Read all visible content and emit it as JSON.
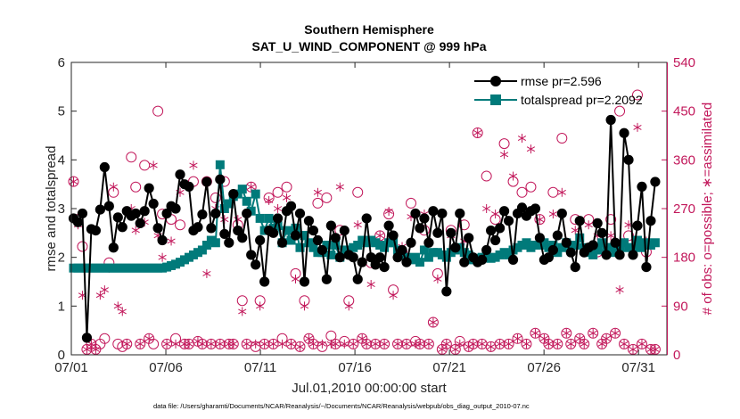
{
  "chart_data": {
    "type": "line",
    "title": "Southern Hemisphere",
    "subtitle": "SAT_U_WIND_COMPONENT @ 999 hPa",
    "xlabel": "Jul.01,2010 00:00:00 start",
    "ylabel_left": "rmse and totalspread",
    "ylabel_right": "# of obs: o=possible; ∗=assimilated",
    "x_ticks": [
      "07/01",
      "07/06",
      "07/11",
      "07/16",
      "07/21",
      "07/26",
      "07/31"
    ],
    "x_tick_days": [
      0,
      5,
      10,
      15,
      20,
      25,
      30
    ],
    "xlim_days": [
      0,
      31.5
    ],
    "ylim_left": [
      0,
      6
    ],
    "yticks_left": [
      "0",
      "1",
      "2",
      "3",
      "4",
      "5",
      "6"
    ],
    "ylim_right": [
      0,
      540
    ],
    "yticks_right": [
      "0",
      "90",
      "180",
      "270",
      "360",
      "450",
      "540"
    ],
    "footnote": "data file: /Users/gharamti/Documents/NCAR/Reanalysis/~/Documents/NCAR/Reanalysis/webpub/obs_diag_output_2010-07.nc",
    "colors": {
      "rmse": "#000000",
      "spread": "#007a7a",
      "obs": "#c2185b"
    },
    "series": [
      {
        "name": "rmse",
        "legend": "rmse pr=2.596",
        "marker": "circle",
        "values": [
          2.8,
          2.72,
          2.9,
          0.35,
          2.58,
          2.55,
          2.98,
          3.85,
          3.05,
          2.2,
          2.82,
          2.62,
          2.95,
          2.85,
          2.9,
          2.7,
          2.95,
          3.42,
          3.1,
          2.6,
          2.35,
          2.9,
          3.05,
          3.0,
          3.7,
          3.5,
          3.45,
          2.55,
          2.62,
          2.88,
          3.55,
          2.6,
          2.9,
          3.6,
          2.48,
          2.3,
          3.3,
          2.55,
          2.4,
          2.9,
          2.05,
          1.85,
          2.35,
          1.5,
          2.55,
          2.5,
          2.8,
          2.3,
          2.95,
          3.05,
          2.45,
          2.9,
          1.5,
          2.75,
          2.55,
          2.35,
          2.15,
          1.55,
          2.65,
          2.4,
          2.0,
          2.55,
          2.05,
          2.0,
          1.55,
          1.9,
          2.8,
          2.0,
          1.85,
          2.0,
          1.8,
          2.65,
          2.45,
          2.0,
          2.15,
          1.9,
          2.3,
          2.9,
          2.6,
          2.8,
          2.3,
          2.95,
          2.5,
          2.9,
          1.3,
          2.5,
          2.2,
          2.9,
          1.9,
          2.4,
          2.0,
          1.9,
          1.95,
          2.15,
          2.55,
          2.35,
          2.6,
          2.95,
          2.75,
          1.95,
          2.9,
          3.02,
          2.85,
          2.95,
          3.0,
          2.4,
          1.95,
          2.0,
          2.15,
          2.45,
          2.9,
          2.3,
          2.1,
          1.8,
          2.75,
          2.1,
          2.2,
          2.25,
          2.7,
          2.5,
          2.05,
          4.82,
          2.3,
          2.05,
          4.55,
          4.0,
          2.05,
          2.65,
          3.45,
          1.8,
          2.75,
          3.55
        ]
      },
      {
        "name": "totalspread",
        "legend": "totalspread pr=2.2092",
        "marker": "square",
        "values": [
          1.78,
          1.78,
          1.78,
          1.78,
          1.78,
          1.78,
          1.78,
          1.78,
          1.78,
          1.78,
          1.78,
          1.78,
          1.78,
          1.78,
          1.78,
          1.78,
          1.78,
          1.78,
          1.78,
          1.78,
          1.78,
          1.8,
          1.83,
          1.86,
          1.9,
          1.95,
          2.0,
          2.05,
          2.1,
          2.15,
          2.25,
          2.35,
          2.3,
          3.9,
          3.0,
          3.1,
          3.25,
          3.3,
          3.4,
          3.15,
          2.95,
          3.3,
          2.8,
          2.55,
          2.8,
          2.6,
          2.65,
          2.3,
          2.55,
          2.35,
          2.6,
          2.2,
          2.45,
          2.3,
          2.2,
          2.1,
          2.1,
          2.25,
          2.05,
          2.25,
          2.0,
          2.15,
          2.15,
          2.2,
          2.25,
          2.35,
          2.3,
          2.35,
          2.3,
          2.25,
          2.2,
          2.3,
          2.3,
          2.15,
          2.05,
          2.0,
          1.95,
          2.0,
          1.9,
          2.15,
          2.0,
          2.1,
          2.1,
          2.05,
          2.0,
          2.1,
          2.15,
          2.2,
          2.1,
          2.05,
          1.95,
          1.98,
          2.0,
          2.05,
          1.98,
          2.0,
          2.05,
          2.1,
          2.05,
          2.15,
          2.2,
          2.25,
          2.3,
          2.2,
          2.25,
          2.25,
          2.3,
          2.2,
          2.25,
          2.1,
          2.2,
          2.3,
          2.2,
          2.25,
          2.4,
          2.2,
          2.1,
          2.05,
          2.15,
          2.3,
          2.2,
          2.2,
          2.1,
          2.2,
          2.3,
          2.2,
          2.2,
          2.35,
          2.2,
          2.3,
          2.25,
          2.3
        ]
      },
      {
        "name": "obs_possible",
        "marker": "open-circle",
        "values": [
          320,
          250,
          200,
          10,
          20,
          10,
          20,
          30,
          170,
          300,
          20,
          15,
          20,
          365,
          310,
          20,
          350,
          30,
          20,
          450,
          260,
          20,
          250,
          30,
          240,
          20,
          20,
          320,
          25,
          20,
          320,
          20,
          290,
          20,
          320,
          20,
          20,
          240,
          100,
          20,
          310,
          15,
          100,
          20,
          290,
          20,
          300,
          30,
          310,
          20,
          150,
          15,
          100,
          30,
          20,
          280,
          15,
          290,
          35,
          20,
          230,
          25,
          100,
          20,
          300,
          30,
          20,
          170,
          20,
          220,
          20,
          260,
          120,
          20,
          190,
          20,
          280,
          25,
          20,
          230,
          20,
          60,
          150,
          10,
          20,
          230,
          10,
          25,
          240,
          15,
          20,
          410,
          20,
          330,
          15,
          250,
          20,
          390,
          20,
          320,
          30,
          300,
          20,
          310,
          40,
          250,
          30,
          20,
          300,
          20,
          400,
          40,
          20,
          250,
          30,
          20,
          250,
          40,
          190,
          20,
          30,
          250,
          40,
          450,
          20,
          220,
          10,
          480,
          20,
          190,
          10,
          10
        ]
      },
      {
        "name": "obs_assimilated",
        "marker": "asterisk",
        "values": [
          320,
          240,
          110,
          10,
          20,
          10,
          110,
          120,
          160,
          310,
          90,
          80,
          20,
          270,
          230,
          20,
          245,
          30,
          350,
          220,
          180,
          20,
          210,
          20,
          300,
          20,
          20,
          350,
          25,
          20,
          150,
          20,
          270,
          20,
          250,
          20,
          20,
          250,
          80,
          20,
          310,
          20,
          90,
          20,
          285,
          20,
          270,
          20,
          290,
          20,
          140,
          15,
          90,
          30,
          20,
          300,
          20,
          140,
          20,
          20,
          310,
          20,
          90,
          20,
          240,
          30,
          20,
          130,
          20,
          220,
          20,
          265,
          110,
          20,
          200,
          20,
          255,
          20,
          20,
          260,
          20,
          60,
          140,
          10,
          20,
          220,
          10,
          20,
          210,
          15,
          20,
          410,
          20,
          270,
          15,
          260,
          20,
          370,
          20,
          330,
          30,
          400,
          20,
          380,
          40,
          250,
          30,
          20,
          260,
          20,
          300,
          40,
          20,
          230,
          30,
          20,
          240,
          40,
          220,
          20,
          30,
          220,
          40,
          120,
          20,
          240,
          10,
          420,
          20,
          210,
          10,
          10
        ]
      }
    ]
  }
}
